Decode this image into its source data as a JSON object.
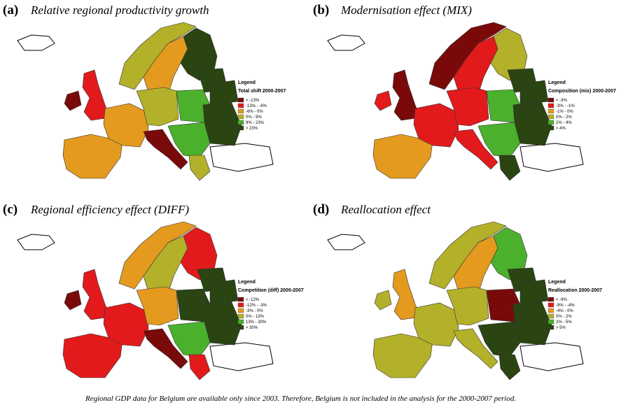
{
  "panels": [
    {
      "label": "(a)",
      "title": "Relative regional productivity growth",
      "legend": {
        "heading": "Legend",
        "title": "Total shift 2000-2007",
        "items": [
          {
            "text": "< -13%",
            "color": "#7a0a0a"
          },
          {
            "text": "-13% - -6%",
            "color": "#e31a1c"
          },
          {
            "text": "-6% - 0%",
            "color": "#e39a1e"
          },
          {
            "text": "0% - 9%",
            "color": "#b3b02a"
          },
          {
            "text": "9% - 23%",
            "color": "#4bb02c"
          },
          {
            "text": "> 23%",
            "color": "#2a4412"
          }
        ]
      }
    },
    {
      "label": "(b)",
      "title": "Modernisation effect (MIX)",
      "legend": {
        "heading": "Legend",
        "title": "Composition (mix) 2000-2007",
        "items": [
          {
            "text": "< -3%",
            "color": "#7a0a0a"
          },
          {
            "text": "-3% - -1%",
            "color": "#e31a1c"
          },
          {
            "text": "-1% - 0%",
            "color": "#e39a1e"
          },
          {
            "text": "0% - 2%",
            "color": "#b3b02a"
          },
          {
            "text": "2% - 4%",
            "color": "#4bb02c"
          },
          {
            "text": "> 4%",
            "color": "#2a4412"
          }
        ]
      }
    },
    {
      "label": "(c)",
      "title": "Regional efficiency effect (DIFF)",
      "legend": {
        "heading": "Legend",
        "title": "Competition (diff) 2000-2007",
        "items": [
          {
            "text": "< -12%",
            "color": "#7a0a0a"
          },
          {
            "text": "-12% - -3%",
            "color": "#e31a1c"
          },
          {
            "text": "-3% - 0%",
            "color": "#e39a1e"
          },
          {
            "text": "0% - 13%",
            "color": "#b3b02a"
          },
          {
            "text": "13% - 30%",
            "color": "#4bb02c"
          },
          {
            "text": "> 30%",
            "color": "#2a4412"
          }
        ]
      }
    },
    {
      "label": "(d)",
      "title": "Reallocation effect",
      "legend": {
        "heading": "Legend",
        "title": "Reallocation 2000-2007",
        "items": [
          {
            "text": "< -9%",
            "color": "#7a0a0a"
          },
          {
            "text": "-9% - -4%",
            "color": "#e31a1c"
          },
          {
            "text": "-4% - 0%",
            "color": "#e39a1e"
          },
          {
            "text": "0% - 2%",
            "color": "#b3b02a"
          },
          {
            "text": "2% - 5%",
            "color": "#4bb02c"
          },
          {
            "text": "> 5%",
            "color": "#2a4412"
          }
        ]
      }
    }
  ],
  "footnote": "Regional GDP data for Belgium are available only since 2003. Therefore, Belgium is not included in the analysis for the 2000-2007 period."
}
